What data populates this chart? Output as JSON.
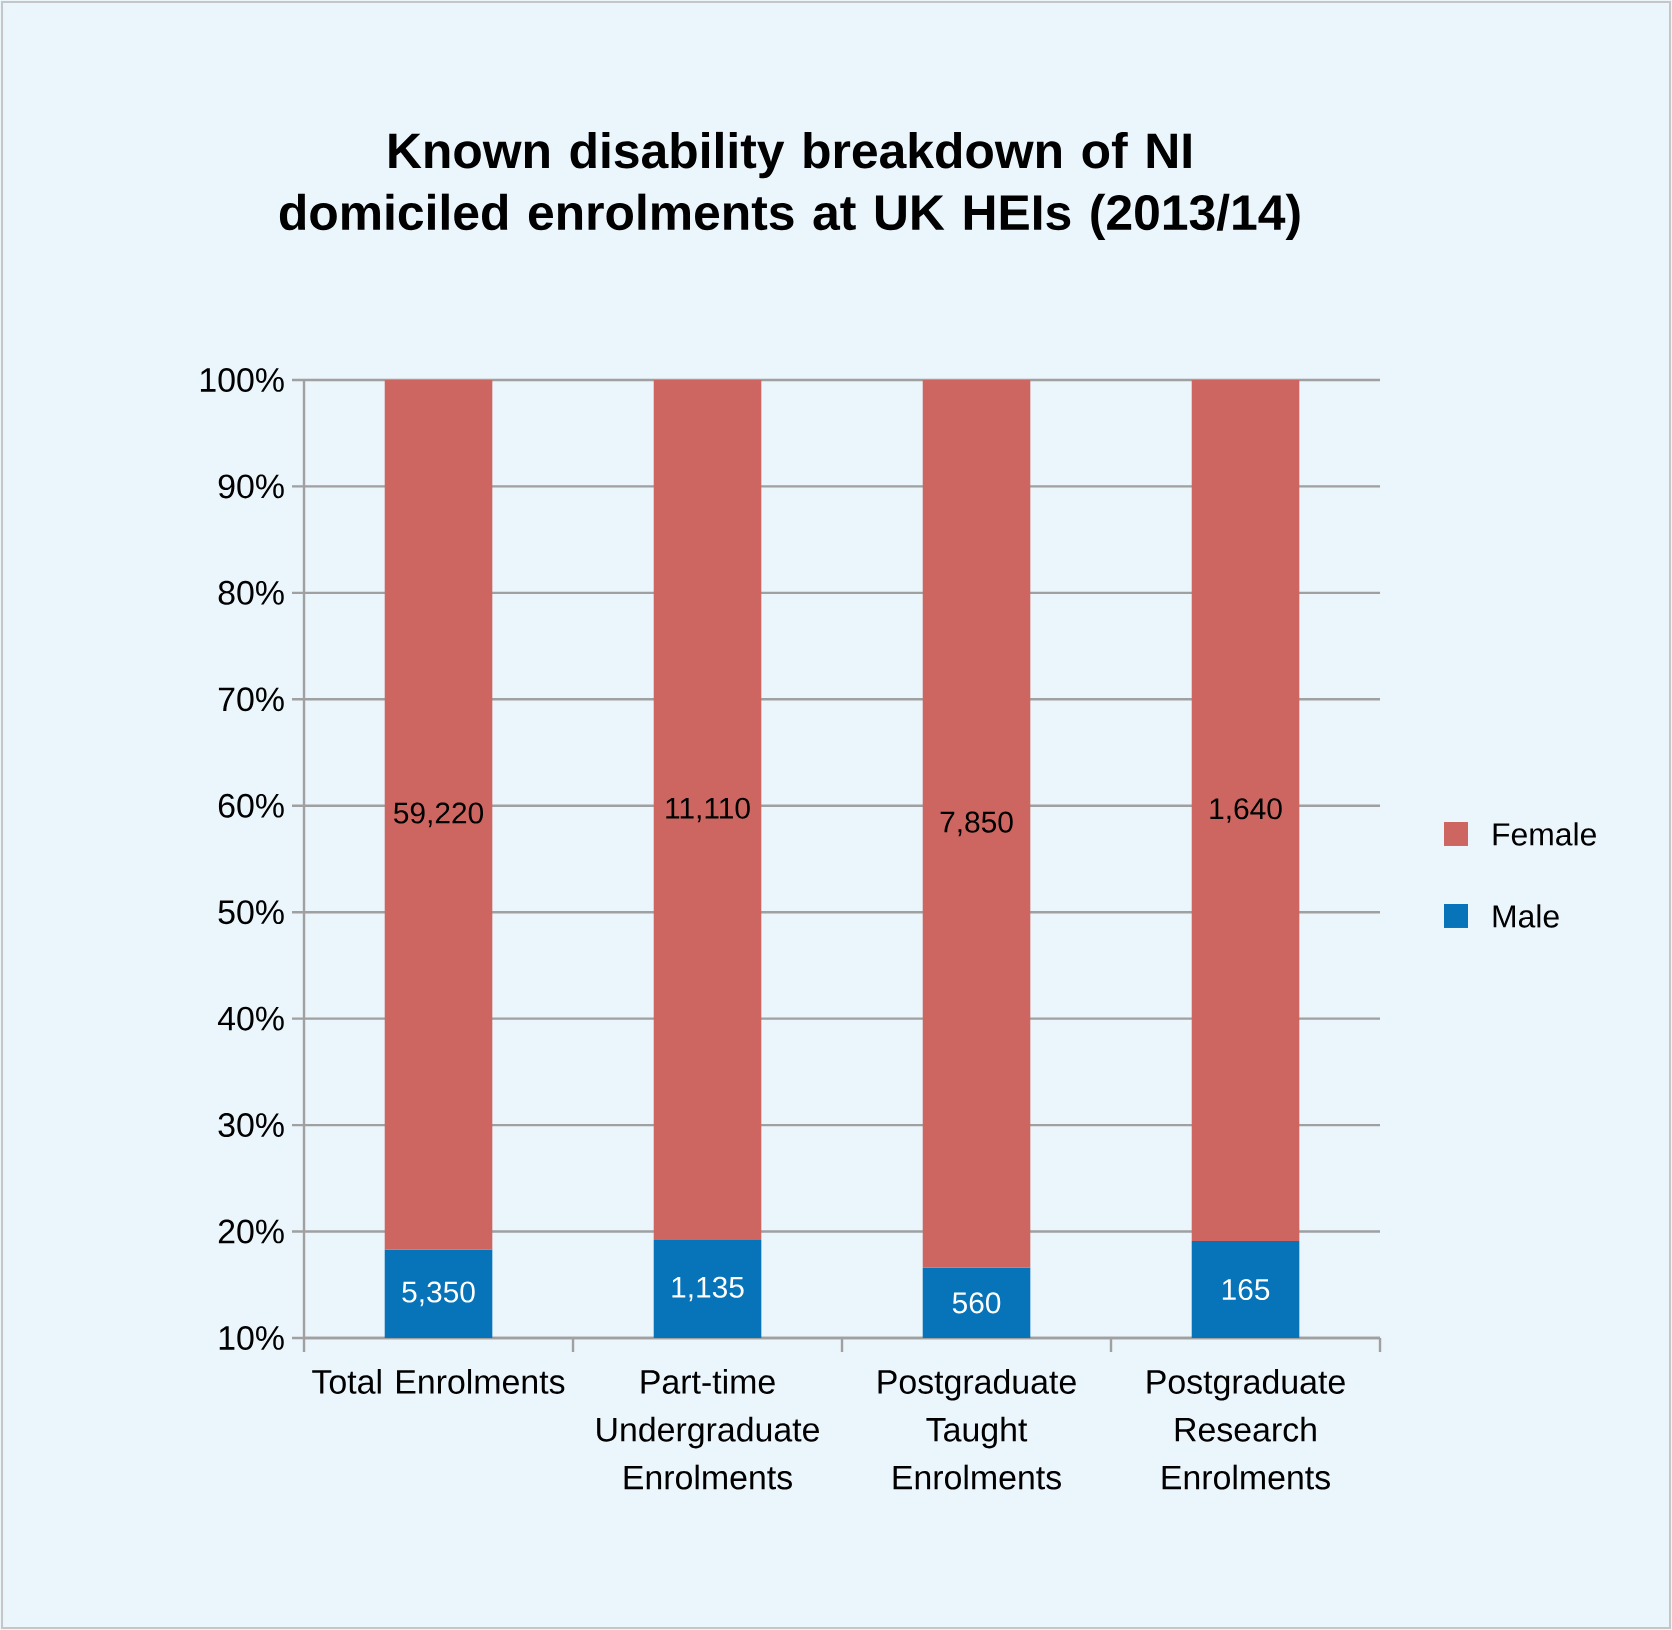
{
  "chart_data": {
    "type": "bar",
    "title": "Known disability breakdown of NI domiciled enrolments at UK HEIs (2013/14)",
    "categories": [
      "Total Enrolments",
      "Part-time Undergraduate Enrolments",
      "Postgraduate Taught Enrolments",
      "Postgraduate Research Enrolments"
    ],
    "stacked": true,
    "series": [
      {
        "name": "Male",
        "color": "#0773b9",
        "values": [
          18.3,
          19.2,
          16.6,
          19.1
        ]
      },
      {
        "name": "Female",
        "color": "#cd6660",
        "values": [
          81.7,
          80.8,
          83.4,
          80.9
        ]
      }
    ],
    "annotations": [
      "5,350",
      "1,135",
      "560",
      "165",
      "59,220",
      "11,110",
      "7,850",
      "1,640"
    ],
    "ylim": [
      10,
      100
    ],
    "yticks": [
      {
        "value": 10,
        "label": "10%"
      },
      {
        "value": 20,
        "label": "20%"
      },
      {
        "value": 30,
        "label": "30%"
      },
      {
        "value": 40,
        "label": "40%"
      },
      {
        "value": 50,
        "label": "50%"
      },
      {
        "value": 60,
        "label": "60%"
      },
      {
        "value": 70,
        "label": "70%"
      },
      {
        "value": 80,
        "label": "80%"
      },
      {
        "value": 90,
        "label": "90%"
      },
      {
        "value": 100,
        "label": "100%"
      }
    ],
    "grid": "y",
    "legend": "right"
  }
}
